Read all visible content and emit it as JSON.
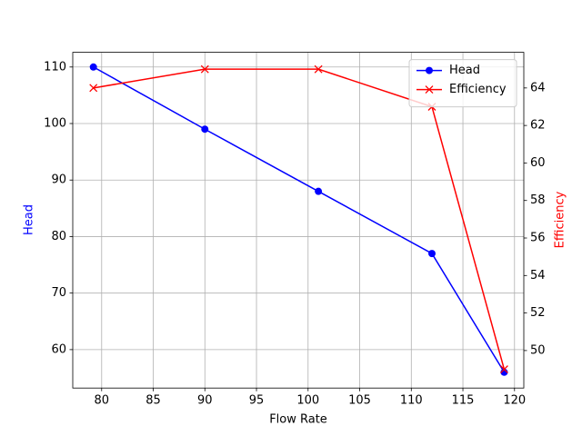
{
  "chart_data": {
    "type": "line",
    "x": [
      79.2,
      90,
      101,
      112,
      119
    ],
    "x_label": "Flow Rate",
    "y_label": "Head",
    "y2_label": "Efficiency",
    "series": [
      {
        "name": "Head",
        "color": "#0000ff",
        "marker": "o",
        "values": [
          110,
          99,
          88,
          77,
          56
        ]
      },
      {
        "name": "Efficiency",
        "color": "#ff0000",
        "marker": "x",
        "axis": "y2",
        "values": [
          64,
          65,
          65,
          63,
          49
        ]
      }
    ],
    "xlim": [
      77.2,
      120.9
    ],
    "xticks": [
      80,
      85,
      90,
      95,
      100,
      105,
      110,
      115,
      120
    ],
    "ylim": [
      53.2,
      112.6
    ],
    "yticks": [
      60,
      70,
      80,
      90,
      100,
      110
    ],
    "y2lim": [
      48.0,
      65.9
    ],
    "y2ticks": [
      50,
      52,
      54,
      56,
      58,
      60,
      62,
      64
    ],
    "grid": true,
    "legend": "upper right"
  }
}
